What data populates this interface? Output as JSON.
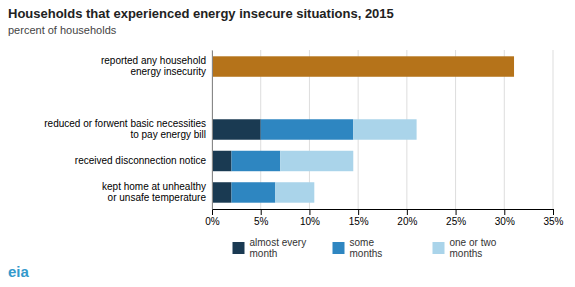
{
  "chart_data": {
    "type": "bar",
    "orientation": "horizontal",
    "stacked": true,
    "title": "Households that experienced energy insecure situations, 2015",
    "subtitle": "percent of households",
    "annotations": [
      "eia"
    ],
    "categories": [
      "reported any household\nenergy insecurity",
      null,
      "reduced or forwent basic necessities\nto pay energy bill",
      "received disconnection notice",
      "kept home at unhealthy\nor unsafe temperature"
    ],
    "series": [
      {
        "color": "#b5731a",
        "values": [
          31.0,
          null,
          null,
          null,
          null
        ]
      },
      {
        "name": "almost every\nmonth",
        "color": "#1a3a52",
        "values": [
          null,
          null,
          5.0,
          2.0,
          2.0
        ]
      },
      {
        "name": "some\nmonths",
        "color": "#2e86c1",
        "values": [
          null,
          null,
          9.5,
          5.0,
          4.5
        ]
      },
      {
        "name": "one or two\nmonths",
        "color": "#aad4ea",
        "values": [
          null,
          null,
          6.5,
          7.5,
          4.0
        ]
      }
    ],
    "xlim": [
      0,
      35
    ],
    "xticks": [
      {
        "value": 0,
        "label": "0%"
      },
      {
        "value": 5,
        "label": "5%"
      },
      {
        "value": 10,
        "label": "10%"
      },
      {
        "value": 15,
        "label": "15%"
      },
      {
        "value": 20,
        "label": "20%"
      },
      {
        "value": 25,
        "label": "25%"
      },
      {
        "value": 30,
        "label": "30%"
      },
      {
        "value": 35,
        "label": "35%"
      }
    ],
    "grid": true,
    "legend": "bottom"
  }
}
